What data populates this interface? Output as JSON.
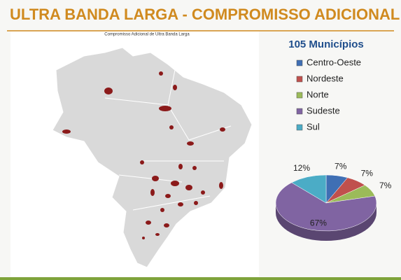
{
  "header": {
    "title": "ULTRA BANDA LARGA - COMPROMISSO ADICIONAL"
  },
  "map": {
    "title": "Compromisso Adicional de Ultra Banda Larga"
  },
  "chart_data": {
    "type": "pie",
    "title": "105 Municípios",
    "categories": [
      "Centro-Oeste",
      "Nordeste",
      "Norte",
      "Sudeste",
      "Sul"
    ],
    "values": [
      7,
      7,
      7,
      67,
      12
    ],
    "value_labels": [
      "7%",
      "7%",
      "7%",
      "67%",
      "12%"
    ],
    "colors": [
      "#3f6fb4",
      "#c0504d",
      "#9bbb59",
      "#8064a2",
      "#4bacc6"
    ]
  }
}
